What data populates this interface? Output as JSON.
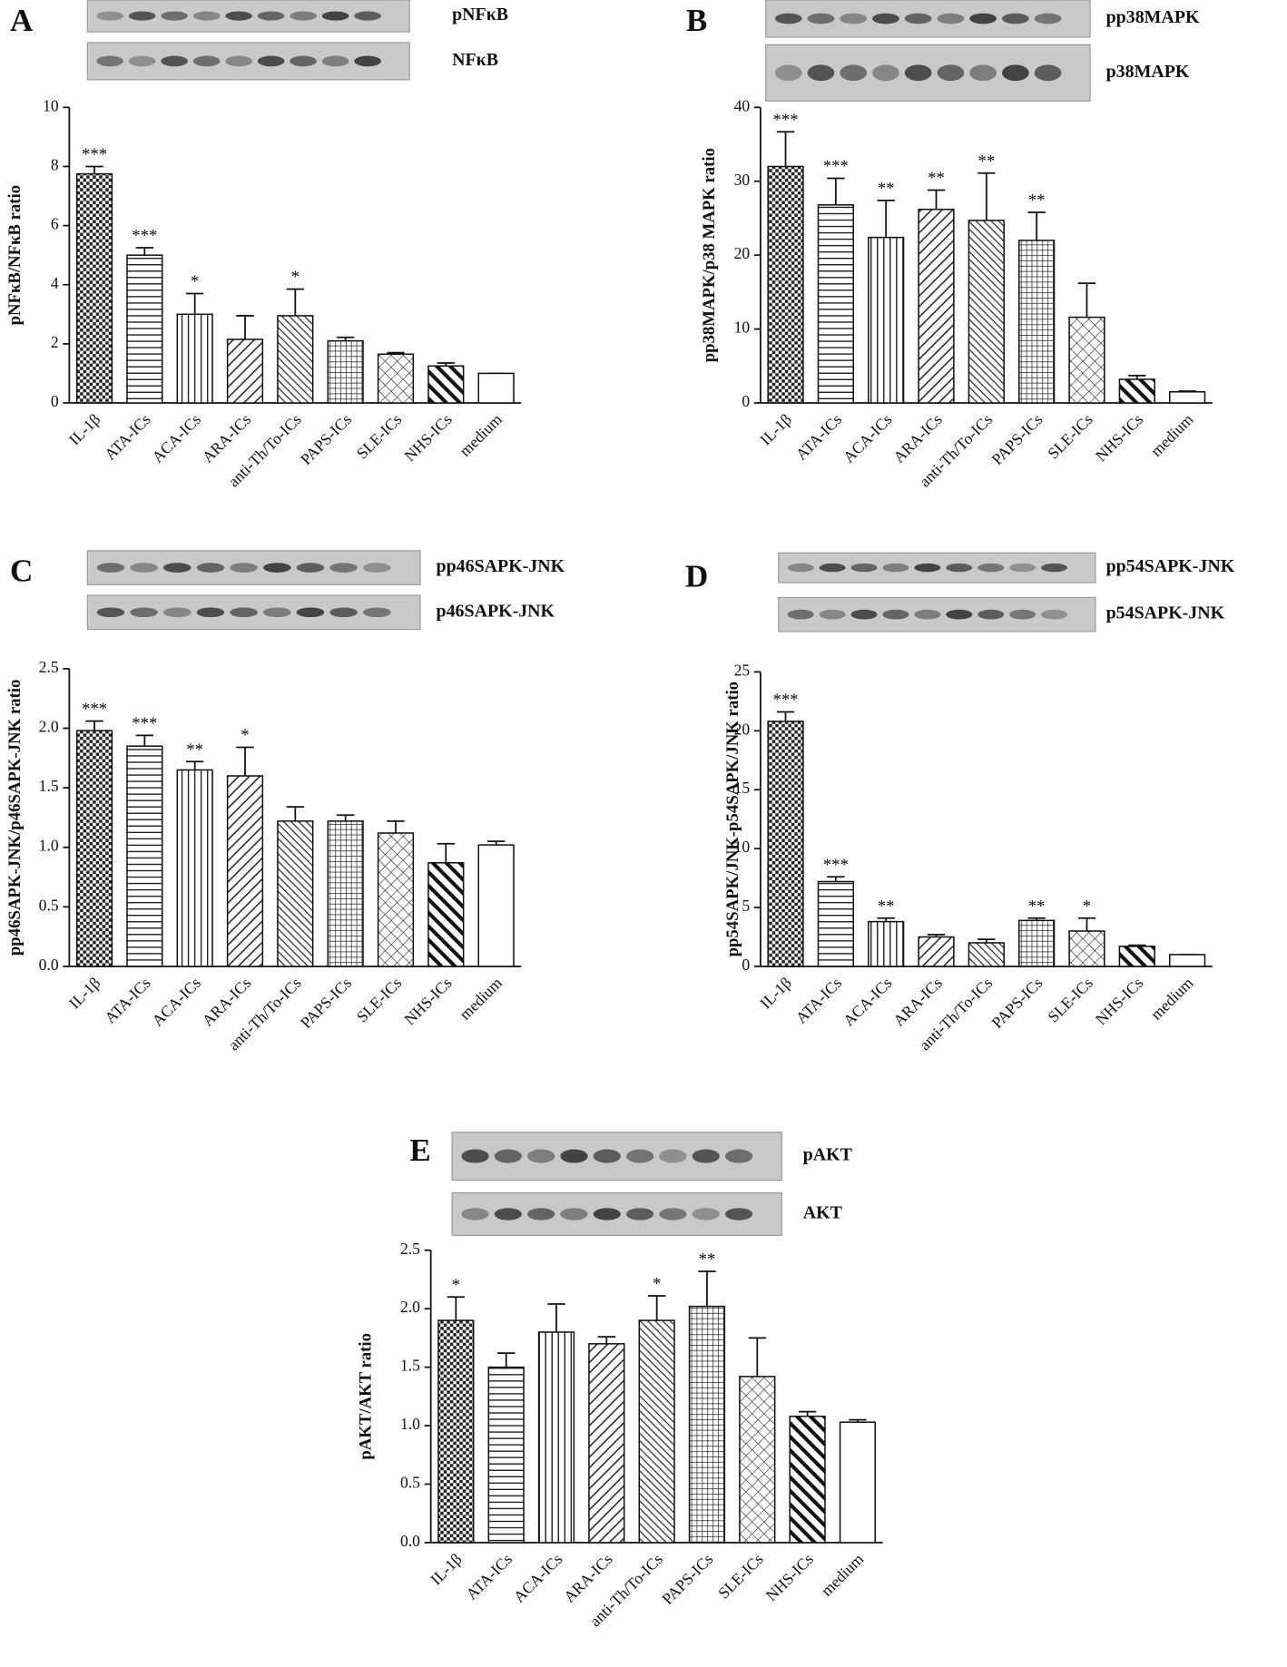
{
  "chart_data": [
    {
      "type": "bar",
      "panel": "A",
      "blots": [
        "pNFκB",
        "NFκB"
      ],
      "y_label": "pNFκB/NFκB ratio",
      "categories": [
        "IL-1β",
        "ATA-ICs",
        "ACA-ICs",
        "ARA-ICs",
        "anti-Th/To-ICs",
        "PAPS-ICs",
        "SLE-ICs",
        "NHS-ICs",
        "medium"
      ],
      "values": [
        7.75,
        5.0,
        3.0,
        2.15,
        2.95,
        2.1,
        1.65,
        1.25,
        1.0
      ],
      "errors": [
        0.25,
        0.25,
        0.7,
        0.8,
        0.9,
        0.12,
        0.05,
        0.1,
        0
      ],
      "annotations": [
        "***",
        "***",
        "*",
        null,
        "*",
        null,
        null,
        null,
        null
      ],
      "ylim": [
        0,
        10
      ],
      "yticks": [
        0,
        2,
        4,
        6,
        8,
        10
      ]
    },
    {
      "type": "bar",
      "panel": "B",
      "blots": [
        "pp38MAPK",
        "p38MAPK"
      ],
      "y_label": "pp38MAPK/p38 MAPK ratio",
      "categories": [
        "IL-1β",
        "ATA-ICs",
        "ACA-ICs",
        "ARA-ICs",
        "anti-Th/To-ICs",
        "PAPS-ICs",
        "SLE-ICs",
        "NHS-ICs",
        "medium"
      ],
      "values": [
        32,
        26.8,
        22.4,
        26.2,
        24.7,
        22,
        11.6,
        3.2,
        1.5
      ],
      "errors": [
        4.7,
        3.6,
        5,
        2.6,
        6.4,
        3.8,
        4.6,
        0.5,
        0.1
      ],
      "annotations": [
        "***",
        "***",
        "**",
        "**",
        "**",
        "**",
        null,
        null,
        null
      ],
      "ylim": [
        0,
        40
      ],
      "yticks": [
        0,
        10,
        20,
        30,
        40
      ]
    },
    {
      "type": "bar",
      "panel": "C",
      "blots": [
        "pp46SAPK-JNK",
        "p46SAPK-JNK"
      ],
      "y_label": "pp46SAPK-JNK/p46SAPK-JNK ratio",
      "categories": [
        "IL-1β",
        "ATA-ICs",
        "ACA-ICs",
        "ARA-ICs",
        "anti-Th/To-ICs",
        "PAPS-ICs",
        "SLE-ICs",
        "NHS-ICs",
        "medium"
      ],
      "values": [
        1.98,
        1.85,
        1.65,
        1.6,
        1.22,
        1.22,
        1.12,
        0.87,
        1.02
      ],
      "errors": [
        0.08,
        0.09,
        0.07,
        0.24,
        0.12,
        0.05,
        0.1,
        0.16,
        0.03
      ],
      "annotations": [
        "***",
        "***",
        "**",
        "*",
        null,
        null,
        null,
        null,
        null
      ],
      "ylim": [
        0,
        2.5
      ],
      "yticks": [
        {
          "value": 0,
          "label": "0.0"
        },
        0.5,
        {
          "value": 1,
          "label": "1.0"
        },
        1.5,
        {
          "value": 2,
          "label": "2.0"
        },
        2.5
      ]
    },
    {
      "type": "bar",
      "panel": "D",
      "blots": [
        "pp54SAPK-JNK",
        "p54SAPK-JNK"
      ],
      "y_label": "pp54SAPK/JNK-p54SAPK/JNK ratio",
      "categories": [
        "IL-1β",
        "ATA-ICs",
        "ACA-ICs",
        "ARA-ICs",
        "anti-Th/To-ICs",
        "PAPS-ICs",
        "SLE-ICs",
        "NHS-ICs",
        "medium"
      ],
      "values": [
        20.8,
        7.2,
        3.8,
        2.5,
        2.0,
        3.9,
        3.0,
        1.7,
        1.0
      ],
      "errors": [
        0.8,
        0.4,
        0.3,
        0.2,
        0.3,
        0.2,
        1.1,
        0.1,
        0
      ],
      "annotations": [
        "***",
        "***",
        "**",
        null,
        null,
        "**",
        "*",
        null,
        null
      ],
      "ylim": [
        0,
        25
      ],
      "yticks": [
        0,
        5,
        10,
        15,
        20,
        25
      ]
    },
    {
      "type": "bar",
      "panel": "E",
      "blots": [
        "pAKT",
        "AKT"
      ],
      "y_label": "pAKT/AKT ratio",
      "categories": [
        "IL-1β",
        "ATA-ICs",
        "ACA-ICs",
        "ARA-ICs",
        "anti-Th/To-ICs",
        "PAPS-ICs",
        "SLE-ICs",
        "NHS-ICs",
        "medium"
      ],
      "values": [
        1.9,
        1.5,
        1.8,
        1.7,
        1.9,
        2.02,
        1.42,
        1.08,
        1.03
      ],
      "errors": [
        0.2,
        0.12,
        0.24,
        0.06,
        0.21,
        0.3,
        0.33,
        0.04,
        0.02
      ],
      "annotations": [
        "*",
        null,
        null,
        null,
        "*",
        "**",
        null,
        null,
        null
      ],
      "ylim": [
        0,
        2.5
      ],
      "yticks": [
        {
          "value": 0,
          "label": "0.0"
        },
        0.5,
        {
          "value": 1,
          "label": "1.0"
        },
        1.5,
        {
          "value": 2,
          "label": "2.0"
        },
        2.5
      ]
    }
  ]
}
